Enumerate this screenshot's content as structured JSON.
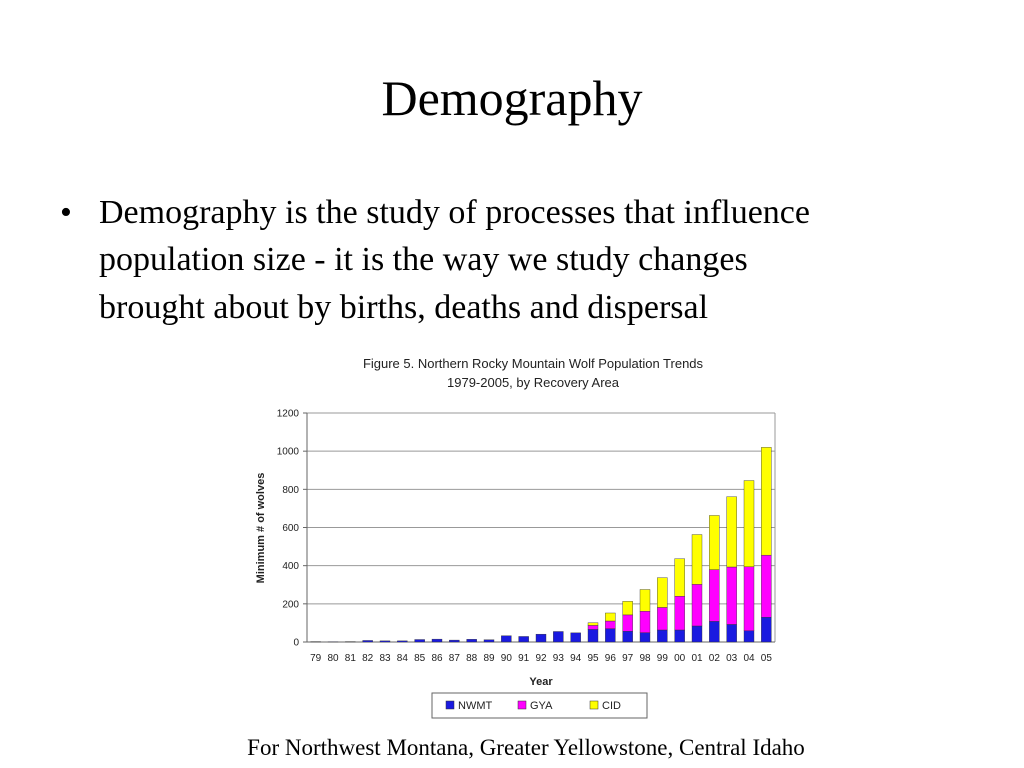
{
  "slide": {
    "title": "Demography",
    "bullet": [
      "Demography is the study of processes that influence",
      "population size - it is the way we study changes",
      "brought about by births, deaths and dispersal"
    ],
    "caption": "For Northwest Montana, Greater Yellowstone, Central Idaho"
  },
  "chart_data": {
    "type": "stacked-bar",
    "title": "Figure 5.  Northern Rocky Mountain Wolf Population Trends",
    "subtitle": "1979-2005, by Recovery Area",
    "x_label": "Year",
    "y_label": "Minimum # of wolves",
    "categories": [
      "79",
      "80",
      "81",
      "82",
      "83",
      "84",
      "85",
      "86",
      "87",
      "88",
      "89",
      "90",
      "91",
      "92",
      "93",
      "94",
      "95",
      "96",
      "97",
      "98",
      "99",
      "00",
      "01",
      "02",
      "03",
      "04",
      "05"
    ],
    "series": [
      {
        "name": "NWMT",
        "color": "#1a1ae0",
        "values": [
          2,
          1,
          2,
          8,
          6,
          6,
          13,
          15,
          10,
          14,
          12,
          33,
          29,
          41,
          55,
          48,
          66,
          70,
          56,
          49,
          63,
          63,
          84,
          108,
          92,
          59,
          130
        ]
      },
      {
        "name": "GYA",
        "color": "#ff00ff",
        "values": [
          0,
          0,
          0,
          0,
          0,
          0,
          0,
          0,
          0,
          0,
          0,
          0,
          0,
          0,
          0,
          0,
          21,
          40,
          86,
          112,
          118,
          177,
          218,
          271,
          301,
          335,
          325
        ]
      },
      {
        "name": "CID",
        "color": "#ffff00",
        "values": [
          0,
          0,
          0,
          0,
          0,
          0,
          0,
          0,
          0,
          0,
          0,
          0,
          0,
          0,
          0,
          0,
          14,
          42,
          71,
          114,
          156,
          196,
          261,
          284,
          368,
          452,
          565
        ]
      }
    ],
    "ylim": [
      0,
      1200
    ],
    "yticks": [
      0,
      200,
      400,
      600,
      800,
      1000,
      1200
    ],
    "grid": true
  }
}
